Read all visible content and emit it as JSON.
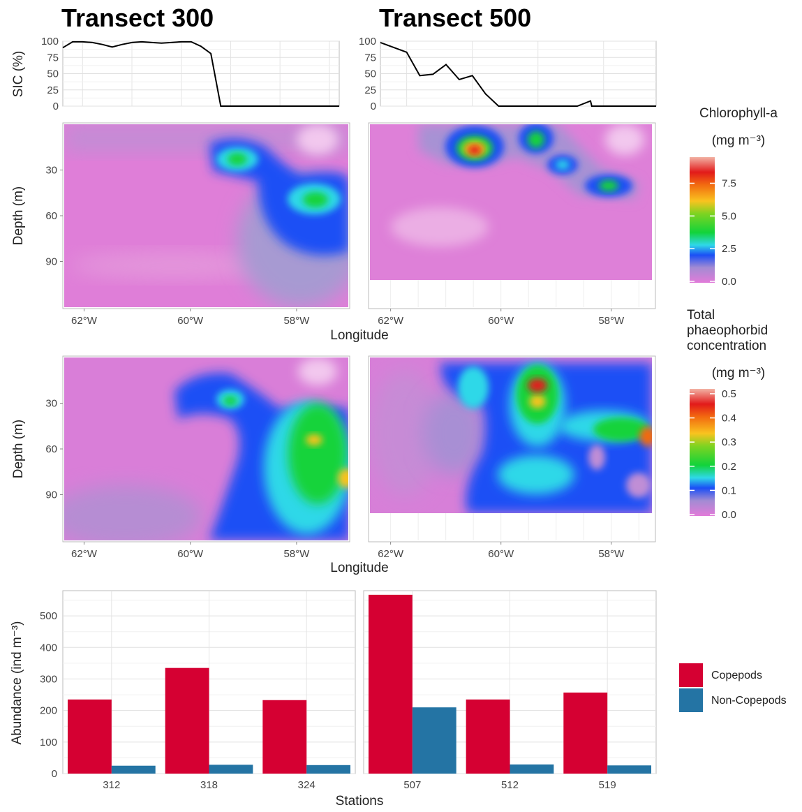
{
  "titles": {
    "t300": "Transect 300",
    "t500": "Transect 500"
  },
  "axes": {
    "sic_label": "SIC (%)",
    "depth_label": "Depth (m)",
    "longitude_label": "Longitude",
    "abundance_label": "Abundance (ind m⁻³)",
    "stations_label": "Stations",
    "sic_ticks": [
      "0",
      "25",
      "50",
      "75",
      "100"
    ],
    "depth_ticks": [
      "30",
      "60",
      "90"
    ],
    "lon_ticks": [
      "62°W",
      "60°W",
      "58°W"
    ],
    "abund_ticks": [
      "0",
      "100",
      "200",
      "300",
      "400",
      "500"
    ]
  },
  "legends": {
    "chl_title_1": "Chlorophyll-a",
    "chl_unit": "(mg m⁻³)",
    "chl_ticks": [
      "7.5",
      "5.0",
      "2.5",
      "0.0"
    ],
    "phaeo_title_1": "Total",
    "phaeo_title_2": "phaeophorbid",
    "phaeo_title_3": "concentration",
    "phaeo_unit": "(mg m⁻³)",
    "phaeo_ticks": [
      "0.5",
      "0.4",
      "0.3",
      "0.2",
      "0.1",
      "0.0"
    ],
    "copepods": "Copepods",
    "noncopepods": "Non-Copepods"
  },
  "colors": {
    "copepods": "#D50032",
    "noncopepods": "#2474A4",
    "scale_low": "#E27BD9",
    "scale_blue": "#1B4FF5",
    "scale_green": "#12D33A",
    "scale_yellow": "#F9C31F",
    "scale_red": "#E21A1A"
  },
  "chart_data": [
    {
      "type": "line",
      "panel": "Transect 300 SIC",
      "xlabel": "",
      "ylabel": "SIC (%)",
      "ylim": [
        0,
        100
      ],
      "xlim": [
        62.4,
        56.8
      ],
      "x_unit": "degrees W longitude",
      "series": [
        {
          "x": [
            62.4,
            62.2,
            62.0,
            61.8,
            61.6,
            61.4,
            61.2,
            61.0,
            60.8,
            60.6,
            60.4,
            60.2,
            60.0,
            59.8,
            59.6,
            59.4,
            59.2,
            56.8
          ],
          "values": [
            90,
            99,
            99,
            98,
            95,
            91,
            95,
            98,
            99,
            98,
            97,
            98,
            99,
            99,
            92,
            81,
            0,
            0
          ]
        }
      ]
    },
    {
      "type": "line",
      "panel": "Transect 500 SIC",
      "xlabel": "",
      "ylabel": "SIC (%)",
      "ylim": [
        0,
        100
      ],
      "xlim": [
        62.4,
        58.2
      ],
      "x_unit": "degrees W longitude",
      "series": [
        {
          "x": [
            62.4,
            62.0,
            61.8,
            61.6,
            61.4,
            61.2,
            61.0,
            60.8,
            60.6,
            60.4,
            60.2,
            60.0,
            59.8,
            59.4,
            59.2,
            59.18,
            58.2
          ],
          "values": [
            98,
            83,
            47,
            49,
            64,
            41,
            47,
            19,
            0,
            0,
            0,
            0,
            0,
            0,
            8,
            0,
            0
          ]
        }
      ]
    },
    {
      "type": "heatmap",
      "panel": "Transect 300 chlorophyll-a",
      "variable": "Chlorophyll-a",
      "unit": "mg m⁻³",
      "xlabel": "Longitude",
      "ylabel": "Depth (m)",
      "xlim": [
        62.4,
        57.0
      ],
      "ylim": [
        0,
        120
      ],
      "value_range": [
        0,
        9.5
      ],
      "features": [
        {
          "lon": 59.0,
          "depth": 22,
          "value": 3.0
        },
        {
          "lon": 57.5,
          "depth": 48,
          "value": 3.0
        },
        {
          "lon": 58.6,
          "depth": 55,
          "value": 1.2
        }
      ]
    },
    {
      "type": "heatmap",
      "panel": "Transect 500 chlorophyll-a",
      "variable": "Chlorophyll-a",
      "unit": "mg m⁻³",
      "xlabel": "Longitude",
      "ylabel": "Depth (m)",
      "xlim": [
        62.4,
        57.2
      ],
      "ylim": [
        0,
        100
      ],
      "value_range": [
        0,
        9.5
      ],
      "features": [
        {
          "lon": 60.4,
          "depth": 18,
          "value": 9.0
        },
        {
          "lon": 59.0,
          "depth": 10,
          "value": 4.0
        },
        {
          "lon": 58.7,
          "depth": 26,
          "value": 3.0
        },
        {
          "lon": 57.8,
          "depth": 40,
          "value": 3.0
        }
      ]
    },
    {
      "type": "heatmap",
      "panel": "Transect 300 phaeophorbid",
      "variable": "Total phaeophorbid concentration",
      "unit": "mg m⁻³",
      "xlabel": "Longitude",
      "ylabel": "Depth (m)",
      "xlim": [
        62.4,
        57.0
      ],
      "ylim": [
        0,
        120
      ],
      "value_range": [
        0,
        0.52
      ],
      "features": [
        {
          "lon": 59.0,
          "depth": 28,
          "value": 0.25
        },
        {
          "lon": 57.6,
          "depth": 55,
          "value": 0.35
        },
        {
          "lon": 57.1,
          "depth": 78,
          "value": 0.35
        },
        {
          "lon": 58.0,
          "depth": 70,
          "value": 0.15
        }
      ]
    },
    {
      "type": "heatmap",
      "panel": "Transect 500 phaeophorbid",
      "variable": "Total phaeophorbid concentration",
      "unit": "mg m⁻³",
      "xlabel": "Longitude",
      "ylabel": "Depth (m)",
      "xlim": [
        62.4,
        57.2
      ],
      "ylim": [
        0,
        100
      ],
      "value_range": [
        0,
        0.52
      ],
      "features": [
        {
          "lon": 59.2,
          "depth": 17,
          "value": 0.5
        },
        {
          "lon": 59.2,
          "depth": 28,
          "value": 0.3
        },
        {
          "lon": 57.3,
          "depth": 50,
          "value": 0.35
        },
        {
          "lon": 59.2,
          "depth": 75,
          "value": 0.12
        },
        {
          "lon": 60.4,
          "depth": 25,
          "value": 0.12
        }
      ]
    },
    {
      "type": "bar",
      "panel": "Transect 300 abundance",
      "categories": [
        "312",
        "318",
        "324"
      ],
      "xlabel": "Stations",
      "ylabel": "Abundance (ind m⁻³)",
      "ylim": [
        0,
        580
      ],
      "series": [
        {
          "name": "Copepods",
          "values": [
            235,
            335,
            233
          ]
        },
        {
          "name": "Non-Copepods",
          "values": [
            25,
            28,
            27
          ]
        }
      ]
    },
    {
      "type": "bar",
      "panel": "Transect 500 abundance",
      "categories": [
        "507",
        "512",
        "519"
      ],
      "xlabel": "Stations",
      "ylabel": "Abundance (ind m⁻³)",
      "ylim": [
        0,
        580
      ],
      "series": [
        {
          "name": "Copepods",
          "values": [
            567,
            235,
            257
          ]
        },
        {
          "name": "Non-Copepods",
          "values": [
            210,
            29,
            26
          ]
        }
      ]
    }
  ]
}
